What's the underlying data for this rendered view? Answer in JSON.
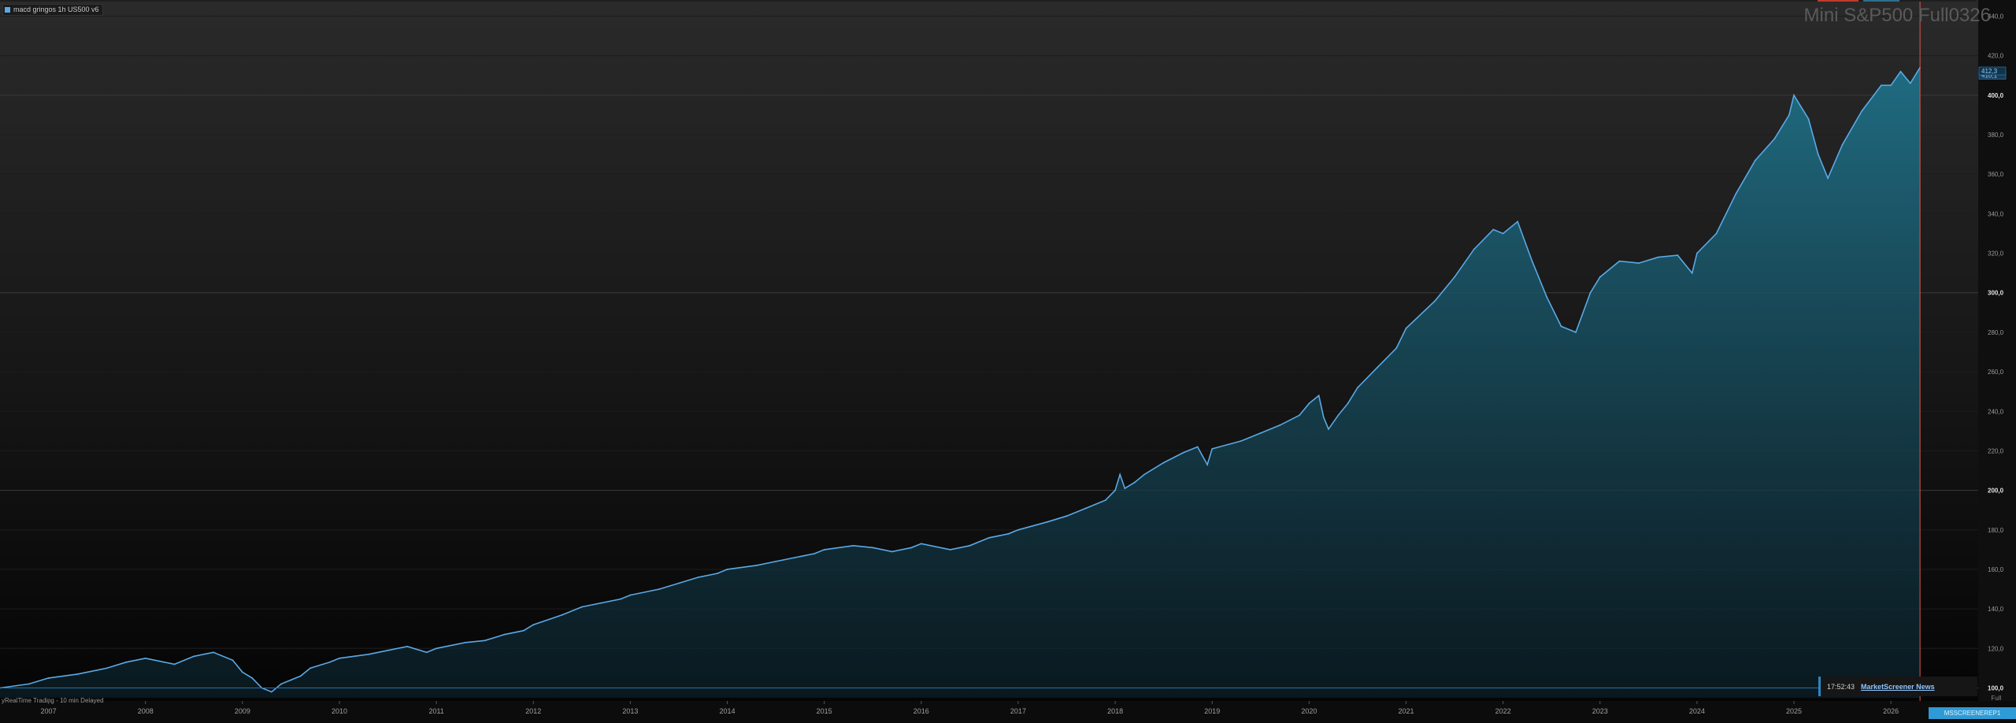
{
  "window": {
    "legend_label": "macd gringos 1h US500 v6",
    "title": "Mini S&P500 Full0326",
    "status_text": "yRealTime Trading - 10 min Delayed",
    "news_time": "17:52:43",
    "news_link": "MarketScreener News",
    "bottom_tab": "MSSCREENEREP1",
    "full_button": "Full",
    "colors": {
      "line": "#5aa9e6",
      "area_top": "#1f6f86",
      "cursor": "#e05555",
      "accent_news": "#2e86c1"
    }
  },
  "chart_data": {
    "type": "area",
    "title": "Mini S&P500 Full0326",
    "xlabel": "",
    "ylabel": "",
    "ylim": [
      95,
      445
    ],
    "xlim": [
      2006.5,
      2026.9
    ],
    "x_ticks": [
      "2007",
      "2008",
      "2009",
      "2010",
      "2011",
      "2012",
      "2013",
      "2014",
      "2015",
      "2016",
      "2017",
      "2018",
      "2019",
      "2020",
      "2021",
      "2022",
      "2023",
      "2024",
      "2025",
      "2026"
    ],
    "y_ticks": [
      "100,0",
      "120,0",
      "140,0",
      "160,0",
      "180,0",
      "200,0",
      "220,0",
      "240,0",
      "260,0",
      "280,0",
      "300,0",
      "320,0",
      "340,0",
      "360,0",
      "380,0",
      "400,0",
      "420,0",
      "440,0"
    ],
    "right_badges": [
      "410,1",
      "412,3"
    ],
    "cursor_x": 2026.3,
    "series": [
      {
        "x": [
          2006.5,
          2006.8,
          2007.0,
          2007.3,
          2007.6,
          2007.8,
          2008.0,
          2008.3,
          2008.5,
          2008.7,
          2008.9,
          2009.0,
          2009.1,
          2009.2,
          2009.3,
          2009.4,
          2009.5,
          2009.6,
          2009.7,
          2009.9,
          2010.0,
          2010.3,
          2010.5,
          2010.7,
          2010.9,
          2011.0,
          2011.3,
          2011.5,
          2011.7,
          2011.9,
          2012.0,
          2012.3,
          2012.5,
          2012.7,
          2012.9,
          2013.0,
          2013.3,
          2013.5,
          2013.7,
          2013.9,
          2014.0,
          2014.3,
          2014.5,
          2014.7,
          2014.9,
          2015.0,
          2015.3,
          2015.5,
          2015.7,
          2015.9,
          2016.0,
          2016.3,
          2016.5,
          2016.7,
          2016.9,
          2017.0,
          2017.3,
          2017.5,
          2017.7,
          2017.9,
          2018.0,
          2018.05,
          2018.1,
          2018.2,
          2018.3,
          2018.5,
          2018.7,
          2018.85,
          2018.95,
          2019.0,
          2019.3,
          2019.5,
          2019.7,
          2019.9,
          2020.0,
          2020.1,
          2020.15,
          2020.2,
          2020.3,
          2020.4,
          2020.5,
          2020.7,
          2020.9,
          2021.0,
          2021.3,
          2021.5,
          2021.7,
          2021.9,
          2022.0,
          2022.15,
          2022.3,
          2022.45,
          2022.6,
          2022.75,
          2022.9,
          2023.0,
          2023.2,
          2023.4,
          2023.6,
          2023.8,
          2023.95,
          2024.0,
          2024.2,
          2024.4,
          2024.6,
          2024.8,
          2024.95,
          2025.0,
          2025.15,
          2025.25,
          2025.35,
          2025.5,
          2025.7,
          2025.9,
          2026.0,
          2026.1,
          2026.2,
          2026.3
        ],
        "y": [
          100,
          102,
          105,
          107,
          110,
          113,
          115,
          112,
          116,
          118,
          114,
          108,
          105,
          100,
          98,
          102,
          104,
          106,
          110,
          113,
          115,
          117,
          119,
          121,
          118,
          120,
          123,
          124,
          127,
          129,
          132,
          137,
          141,
          143,
          145,
          147,
          150,
          153,
          156,
          158,
          160,
          162,
          164,
          166,
          168,
          170,
          172,
          171,
          169,
          171,
          173,
          170,
          172,
          176,
          178,
          180,
          184,
          187,
          191,
          195,
          200,
          208,
          201,
          204,
          208,
          214,
          219,
          222,
          213,
          221,
          225,
          229,
          233,
          238,
          244,
          248,
          237,
          231,
          238,
          244,
          252,
          262,
          272,
          282,
          296,
          308,
          322,
          332,
          330,
          336,
          316,
          298,
          283,
          280,
          300,
          308,
          316,
          315,
          318,
          319,
          310,
          320,
          330,
          350,
          367,
          378,
          390,
          400,
          388,
          370,
          358,
          375,
          392,
          405,
          405,
          412,
          406,
          414
        ]
      }
    ]
  }
}
